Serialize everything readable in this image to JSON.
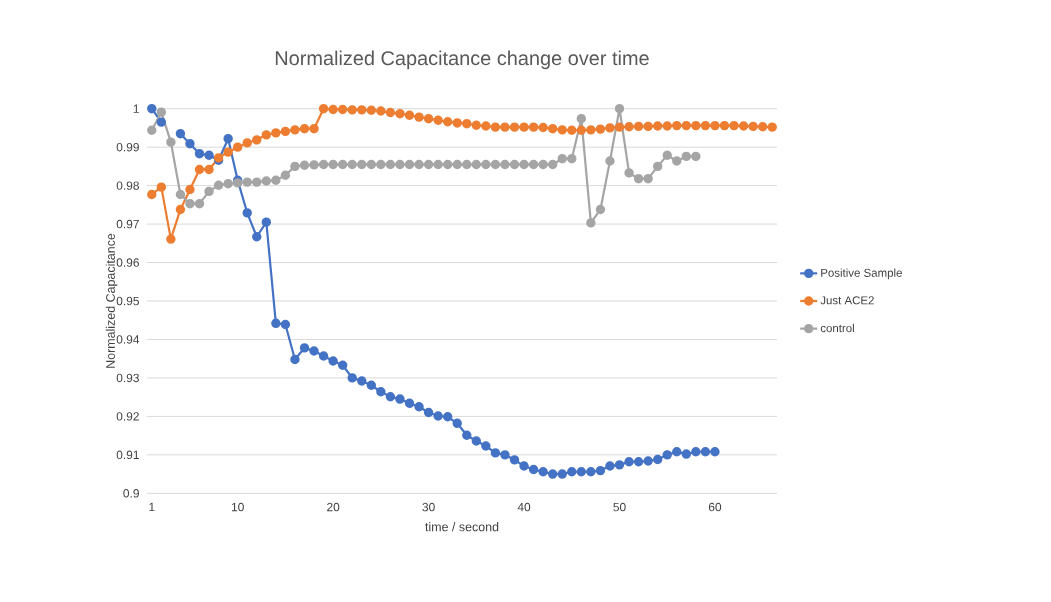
{
  "chart_data": {
    "type": "line",
    "title": "Normalized Capacitance change over time",
    "xlabel": "time / second",
    "ylabel": "Normalized Capacitance",
    "xlim": [
      0.5,
      66.5
    ],
    "xticks": [
      1,
      10,
      20,
      30,
      40,
      50,
      60
    ],
    "ylim": [
      0.9,
      1
    ],
    "yticks": [
      0.9,
      0.91,
      0.92,
      0.93,
      0.94,
      0.95,
      0.96,
      0.97,
      0.98,
      0.99,
      1
    ],
    "grid": "y",
    "legend": "right",
    "marker": "circle",
    "line_style": "solid",
    "series": [
      {
        "name": "Positive Sample",
        "color": "#4472c4",
        "x": [
          1,
          2,
          3,
          4,
          5,
          6,
          7,
          8,
          9,
          10,
          11,
          12,
          13,
          14,
          15,
          16,
          17,
          18,
          19,
          20,
          21,
          22,
          23,
          24,
          25,
          26,
          27,
          28,
          29,
          30,
          31,
          32,
          33,
          34,
          35,
          36,
          37,
          38,
          39,
          40,
          41,
          42,
          43,
          44,
          45,
          46,
          47,
          48,
          49,
          50,
          51,
          52,
          53,
          54,
          55,
          56,
          57,
          58,
          59,
          60
        ],
        "values": [
          1.0,
          0.9965,
          null,
          0.9935,
          0.9909,
          0.9883,
          0.9879,
          0.9866,
          0.9922,
          0.9814,
          0.9729,
          0.9667,
          0.9705,
          0.9442,
          0.9439,
          0.9348,
          0.9378,
          0.937,
          0.9357,
          0.9344,
          0.9333,
          0.93,
          0.9292,
          0.9281,
          0.9264,
          0.9251,
          0.9245,
          0.9234,
          0.9225,
          0.921,
          0.9201,
          0.9199,
          0.9182,
          0.9151,
          0.9136,
          0.9123,
          0.9105,
          0.91,
          0.9087,
          0.9071,
          0.9062,
          0.9056,
          0.905,
          0.905,
          0.9056,
          0.9056,
          0.9056,
          0.9059,
          0.9071,
          0.9074,
          0.9082,
          0.9082,
          0.9084,
          0.9088,
          0.91,
          0.9108,
          0.9102,
          0.9108,
          0.9108,
          0.9108
        ]
      },
      {
        "name": "Just ACE2",
        "color": "#ed7d31",
        "x": [
          1,
          2,
          3,
          4,
          5,
          6,
          7,
          8,
          9,
          10,
          11,
          12,
          13,
          14,
          15,
          16,
          17,
          18,
          19,
          20,
          21,
          22,
          23,
          24,
          25,
          26,
          27,
          28,
          29,
          30,
          31,
          32,
          33,
          34,
          35,
          36,
          37,
          38,
          39,
          40,
          41,
          42,
          43,
          44,
          45,
          46,
          47,
          48,
          49,
          50,
          51,
          52,
          53,
          54,
          55,
          56,
          57,
          58,
          59,
          60,
          61,
          62,
          63,
          64,
          65,
          66
        ],
        "values": [
          0.9777,
          0.9796,
          0.9661,
          0.9738,
          0.979,
          0.9842,
          0.9842,
          0.9872,
          0.9887,
          0.99,
          0.9911,
          0.9919,
          0.9932,
          0.9937,
          0.9941,
          0.9945,
          0.9948,
          0.9948,
          1.0,
          0.9998,
          0.9998,
          0.9997,
          0.9997,
          0.9996,
          0.9994,
          0.999,
          0.9987,
          0.9983,
          0.9978,
          0.9974,
          0.997,
          0.9966,
          0.9963,
          0.9961,
          0.9957,
          0.9955,
          0.9952,
          0.9952,
          0.9952,
          0.9952,
          0.9952,
          0.9951,
          0.9948,
          0.9945,
          0.9944,
          0.9944,
          0.9945,
          0.9947,
          0.995,
          0.9952,
          0.9953,
          0.9954,
          0.9954,
          0.9955,
          0.9955,
          0.9956,
          0.9956,
          0.9956,
          0.9956,
          0.9956,
          0.9956,
          0.9956,
          0.9955,
          0.9954,
          0.9953,
          0.9952
        ]
      },
      {
        "name": "control",
        "color": "#a5a5a5",
        "x": [
          1,
          2,
          3,
          4,
          5,
          6,
          7,
          8,
          9,
          10,
          11,
          12,
          13,
          14,
          15,
          16,
          17,
          18,
          19,
          20,
          21,
          22,
          23,
          24,
          25,
          26,
          27,
          28,
          29,
          30,
          31,
          32,
          33,
          34,
          35,
          36,
          37,
          38,
          39,
          40,
          41,
          42,
          43,
          44,
          45,
          46,
          47,
          48,
          49,
          50,
          51,
          52,
          53,
          54,
          55,
          56,
          57,
          58
        ],
        "values": [
          0.9944,
          0.9991,
          0.9913,
          0.9777,
          0.9753,
          0.9753,
          0.9785,
          0.9801,
          0.9805,
          0.9807,
          0.9809,
          0.9809,
          0.9812,
          0.9814,
          0.9827,
          0.985,
          0.9853,
          0.9854,
          0.9855,
          0.9855,
          0.9855,
          0.9855,
          0.9855,
          0.9855,
          0.9855,
          0.9855,
          0.9855,
          0.9855,
          0.9855,
          0.9855,
          0.9855,
          0.9855,
          0.9855,
          0.9855,
          0.9855,
          0.9855,
          0.9855,
          0.9855,
          0.9855,
          0.9855,
          0.9855,
          0.9855,
          0.9855,
          0.987,
          0.987,
          0.9974,
          0.9703,
          0.9738,
          0.9864,
          1.0,
          0.9833,
          0.9818,
          0.9818,
          0.985,
          0.9879,
          0.9864,
          0.9876,
          0.9876
        ]
      }
    ]
  }
}
